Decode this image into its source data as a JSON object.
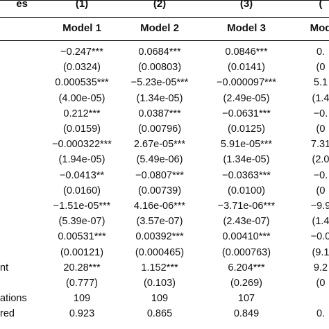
{
  "table": {
    "stub_header": "es",
    "column_numbers": [
      "(1)",
      "(2)",
      "(3)",
      "("
    ],
    "models": [
      "Model 1",
      "Model 2",
      "Model 3",
      "Mod"
    ],
    "rows": [
      {
        "label": "",
        "cells": [
          "−0.247***",
          "0.0684***",
          "0.0846***",
          "0."
        ]
      },
      {
        "label": "",
        "cells": [
          "(0.0324)",
          "(0.00803)",
          "(0.0141)",
          "(0"
        ]
      },
      {
        "label": "",
        "cells": [
          "0.000535***",
          "−5.23e-05***",
          "−0.000097***",
          "5.1"
        ]
      },
      {
        "label": "",
        "cells": [
          "(4.00e-05)",
          "(1.34e-05)",
          "(2.49e-05)",
          "(1.4"
        ]
      },
      {
        "label": "",
        "cells": [
          "0.212***",
          "0.0387***",
          "−0.0631***",
          "−0."
        ]
      },
      {
        "label": "",
        "cells": [
          "(0.0159)",
          "(0.00796)",
          "(0.0125)",
          "(0"
        ]
      },
      {
        "label": "",
        "cells": [
          "−0.000322***",
          "2.67e-05***",
          "5.91e-05***",
          "7.31"
        ]
      },
      {
        "label": "",
        "cells": [
          "(1.94e-05)",
          "(5.49e-06)",
          "(1.34e-05)",
          "(2.0"
        ]
      },
      {
        "label": "",
        "cells": [
          "−0.0413**",
          "−0.0807***",
          "−0.0363***",
          "−0."
        ]
      },
      {
        "label": "",
        "cells": [
          "(0.0160)",
          "(0.00739)",
          "(0.0100)",
          "(0"
        ]
      },
      {
        "label": "",
        "cells": [
          "−1.51e-05***",
          "4.16e-06***",
          "−3.71e-06***",
          "−9.9"
        ]
      },
      {
        "label": "",
        "cells": [
          "(5.39e-07)",
          "(3.57e-07)",
          "(2.43e-07)",
          "(1.4"
        ]
      },
      {
        "label": "",
        "cells": [
          "0.00531***",
          "0.00392***",
          "0.00410***",
          "−0.0"
        ]
      },
      {
        "label": "",
        "cells": [
          "(0.00121)",
          "(0.000465)",
          "(0.000763)",
          "(9.1"
        ]
      },
      {
        "label": "nt",
        "cells": [
          "20.28***",
          "1.152***",
          "6.204***",
          "9.2"
        ]
      },
      {
        "label": "",
        "cells": [
          "(0.777)",
          "(0.103)",
          "(0.269)",
          "(0"
        ]
      },
      {
        "label": "ations",
        "cells": [
          "109",
          "109",
          "107",
          ""
        ]
      },
      {
        "label": "red",
        "cells": [
          "0.923",
          "0.865",
          "0.849",
          "0."
        ]
      }
    ]
  },
  "colors": {
    "text": "#111111",
    "rule": "#111111",
    "background": "#ffffff"
  }
}
